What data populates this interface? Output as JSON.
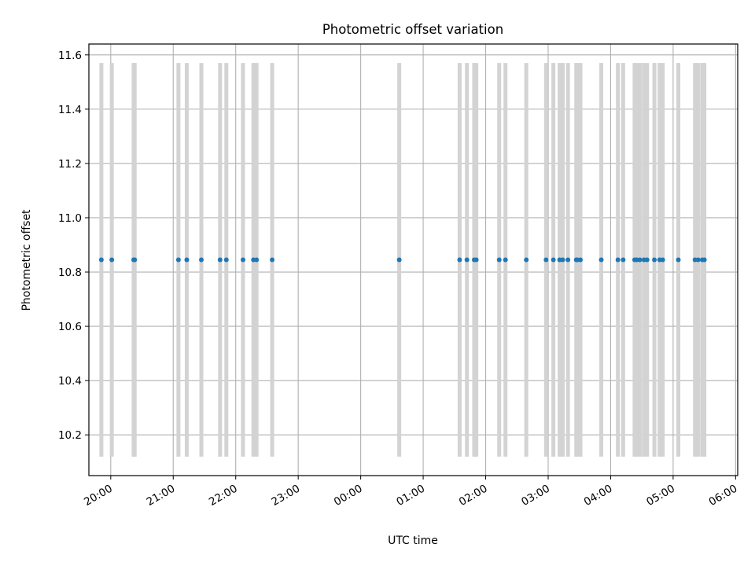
{
  "chart_data": {
    "type": "scatter",
    "title": "Photometric offset variation",
    "xlabel": "UTC time",
    "ylabel": "Photometric offset",
    "x_axis": "time",
    "x_range": [
      "19:39",
      "06:02"
    ],
    "x_ticks": [
      "20:00",
      "21:00",
      "22:00",
      "23:00",
      "00:00",
      "01:00",
      "02:00",
      "03:00",
      "04:00",
      "05:00",
      "06:00"
    ],
    "ylim": [
      10.05,
      11.64
    ],
    "y_ticks": [
      "10.2",
      "10.4",
      "10.6",
      "10.8",
      "11.0",
      "11.2",
      "11.4",
      "11.6"
    ],
    "grid": true,
    "colors": {
      "points": "#1f77b4",
      "error_bars": "#d3d3d3",
      "grid": "#b0b0b0"
    },
    "error_bars": {
      "low": 10.12,
      "high": 11.57
    },
    "series": [
      {
        "x": [
          "19:51",
          "20:01",
          "20:22",
          "20:23",
          "21:05",
          "21:13",
          "21:27",
          "21:45",
          "21:51",
          "22:07",
          "22:17",
          "22:20",
          "22:35",
          "00:37",
          "01:35",
          "01:42",
          "01:49",
          "01:51",
          "02:13",
          "02:19",
          "02:39",
          "02:58",
          "03:05",
          "03:11",
          "03:14",
          "03:19",
          "03:27",
          "03:28",
          "03:31",
          "03:51",
          "04:07",
          "04:12",
          "04:23",
          "04:25",
          "04:28",
          "04:32",
          "04:35",
          "04:42",
          "04:47",
          "04:50",
          "05:05",
          "05:21",
          "05:24",
          "05:28",
          "05:30"
        ],
        "y": [
          10.845,
          10.845,
          10.845,
          10.845,
          10.845,
          10.845,
          10.845,
          10.845,
          10.845,
          10.845,
          10.845,
          10.845,
          10.845,
          10.845,
          10.845,
          10.845,
          10.845,
          10.845,
          10.845,
          10.845,
          10.845,
          10.845,
          10.845,
          10.845,
          10.845,
          10.845,
          10.845,
          10.845,
          10.845,
          10.845,
          10.845,
          10.845,
          10.845,
          10.845,
          10.845,
          10.845,
          10.845,
          10.845,
          10.845,
          10.845,
          10.845,
          10.845,
          10.845,
          10.845,
          10.845
        ]
      }
    ]
  }
}
